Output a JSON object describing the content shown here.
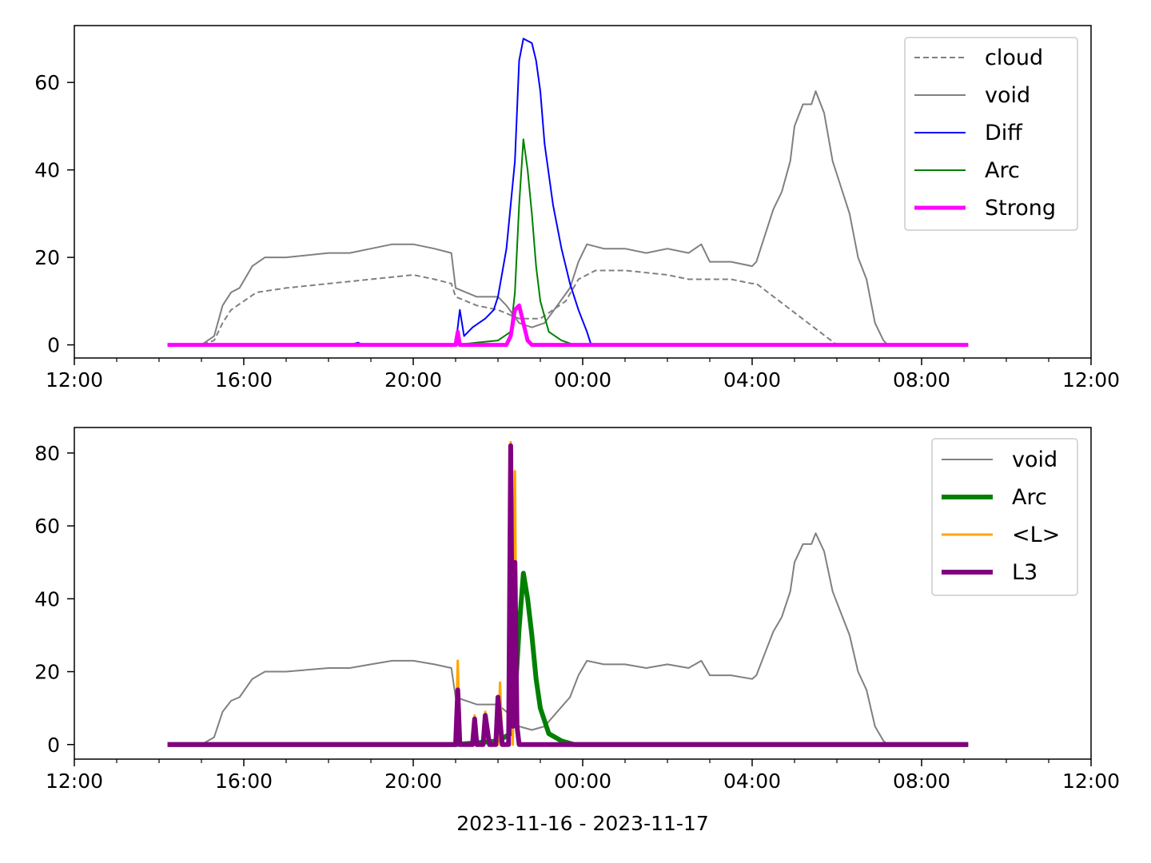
{
  "colors": {
    "cloud": "#808080",
    "void": "#808080",
    "Diff": "#0000ff",
    "Arc": "#008000",
    "Strong": "#ff00ff",
    "L": "#ffa500",
    "L3": "#800080"
  },
  "chart_data": [
    {
      "type": "line",
      "xlabel": "",
      "ylabel": "",
      "x_unit": "hours since 2023-11-16 00:00",
      "xlim": [
        12,
        36
      ],
      "ylim": [
        -3,
        73
      ],
      "x_ticks": [
        12,
        16,
        20,
        24,
        28,
        32,
        36
      ],
      "x_tick_labels": [
        "12:00",
        "16:00",
        "20:00",
        "00:00",
        "04:00",
        "08:00",
        "12:00"
      ],
      "y_ticks": [
        0,
        20,
        40,
        60
      ],
      "y_tick_labels": [
        "0",
        "20",
        "40",
        "60"
      ],
      "legend_position": "top-right",
      "grid": false,
      "series": [
        {
          "name": "cloud",
          "style": "dashed",
          "color": "#808080",
          "width": 1,
          "points": [
            [
              14.2,
              0
            ],
            [
              15.0,
              0
            ],
            [
              15.3,
              1
            ],
            [
              15.5,
              5
            ],
            [
              15.7,
              8
            ],
            [
              16.0,
              10
            ],
            [
              16.3,
              12
            ],
            [
              17.0,
              13
            ],
            [
              18.0,
              14
            ],
            [
              19.0,
              15
            ],
            [
              20.0,
              16
            ],
            [
              20.5,
              15
            ],
            [
              20.9,
              14
            ],
            [
              21.0,
              11
            ],
            [
              21.5,
              9
            ],
            [
              22.0,
              8
            ],
            [
              22.5,
              6
            ],
            [
              23.0,
              6
            ],
            [
              23.3,
              8
            ],
            [
              23.6,
              10
            ],
            [
              23.9,
              15
            ],
            [
              24.3,
              17
            ],
            [
              25.0,
              17
            ],
            [
              26.0,
              16
            ],
            [
              26.5,
              15
            ],
            [
              27.0,
              15
            ],
            [
              27.5,
              15
            ],
            [
              28.0,
              14
            ],
            [
              28.1,
              14
            ],
            [
              30.0,
              0
            ],
            [
              31.2,
              0
            ]
          ]
        },
        {
          "name": "void",
          "style": "solid",
          "color": "#808080",
          "width": 1,
          "points": [
            [
              14.2,
              0
            ],
            [
              15.0,
              0
            ],
            [
              15.3,
              2
            ],
            [
              15.5,
              9
            ],
            [
              15.7,
              12
            ],
            [
              15.9,
              13
            ],
            [
              16.2,
              18
            ],
            [
              16.5,
              20
            ],
            [
              17.0,
              20
            ],
            [
              18.0,
              21
            ],
            [
              18.5,
              21
            ],
            [
              19.0,
              22
            ],
            [
              19.5,
              23
            ],
            [
              20.0,
              23
            ],
            [
              20.5,
              22
            ],
            [
              20.9,
              21
            ],
            [
              21.0,
              13
            ],
            [
              21.5,
              11
            ],
            [
              22.0,
              11
            ],
            [
              22.2,
              9
            ],
            [
              22.5,
              5
            ],
            [
              22.8,
              4
            ],
            [
              23.1,
              5
            ],
            [
              23.4,
              9
            ],
            [
              23.7,
              13
            ],
            [
              23.9,
              19
            ],
            [
              24.1,
              23
            ],
            [
              24.5,
              22
            ],
            [
              25.0,
              22
            ],
            [
              25.5,
              21
            ],
            [
              26.0,
              22
            ],
            [
              26.5,
              21
            ],
            [
              26.8,
              23
            ],
            [
              27.0,
              19
            ],
            [
              27.5,
              19
            ],
            [
              28.0,
              18
            ],
            [
              28.1,
              19
            ],
            [
              28.3,
              25
            ],
            [
              28.5,
              31
            ],
            [
              28.7,
              35
            ],
            [
              28.9,
              42
            ],
            [
              29.0,
              50
            ],
            [
              29.2,
              55
            ],
            [
              29.4,
              55
            ],
            [
              29.5,
              58
            ],
            [
              29.7,
              53
            ],
            [
              29.9,
              42
            ],
            [
              30.1,
              36
            ],
            [
              30.3,
              30
            ],
            [
              30.5,
              20
            ],
            [
              30.7,
              15
            ],
            [
              30.9,
              5
            ],
            [
              31.1,
              1
            ],
            [
              31.2,
              0
            ],
            [
              33.1,
              0
            ]
          ]
        },
        {
          "name": "Diff",
          "style": "solid",
          "color": "#0000ff",
          "width": 1,
          "points": [
            [
              14.2,
              0
            ],
            [
              18.5,
              0
            ],
            [
              18.7,
              0.5
            ],
            [
              18.8,
              0
            ],
            [
              21.0,
              0
            ],
            [
              21.1,
              8
            ],
            [
              21.2,
              2
            ],
            [
              21.4,
              4
            ],
            [
              21.7,
              6
            ],
            [
              21.9,
              8
            ],
            [
              22.0,
              11
            ],
            [
              22.2,
              22
            ],
            [
              22.4,
              42
            ],
            [
              22.5,
              65
            ],
            [
              22.6,
              70
            ],
            [
              22.8,
              69
            ],
            [
              22.9,
              65
            ],
            [
              23.0,
              58
            ],
            [
              23.1,
              46
            ],
            [
              23.3,
              32
            ],
            [
              23.5,
              22
            ],
            [
              23.7,
              14
            ],
            [
              23.9,
              8
            ],
            [
              24.1,
              3
            ],
            [
              24.2,
              0
            ],
            [
              33.1,
              0
            ]
          ]
        },
        {
          "name": "Arc",
          "style": "solid",
          "color": "#008000",
          "width": 1,
          "points": [
            [
              14.2,
              0
            ],
            [
              21.0,
              0
            ],
            [
              21.5,
              0.5
            ],
            [
              22.0,
              1
            ],
            [
              22.3,
              3
            ],
            [
              22.4,
              12
            ],
            [
              22.5,
              32
            ],
            [
              22.6,
              47
            ],
            [
              22.7,
              40
            ],
            [
              22.8,
              30
            ],
            [
              22.9,
              18
            ],
            [
              23.0,
              10
            ],
            [
              23.2,
              3
            ],
            [
              23.5,
              1
            ],
            [
              23.8,
              0
            ],
            [
              33.1,
              0
            ]
          ]
        },
        {
          "name": "Strong",
          "style": "solid",
          "color": "#ff00ff",
          "width": 2.5,
          "points": [
            [
              14.2,
              0
            ],
            [
              21.0,
              0
            ],
            [
              21.05,
              3
            ],
            [
              21.1,
              0
            ],
            [
              22.2,
              0
            ],
            [
              22.3,
              2
            ],
            [
              22.4,
              8
            ],
            [
              22.5,
              9
            ],
            [
              22.6,
              5
            ],
            [
              22.7,
              1
            ],
            [
              22.8,
              0
            ],
            [
              33.1,
              0
            ]
          ]
        }
      ]
    },
    {
      "type": "line",
      "xlabel": "2023-11-16 - 2023-11-17",
      "ylabel": "",
      "x_unit": "hours since 2023-11-16 00:00",
      "xlim": [
        12,
        36
      ],
      "ylim": [
        -4,
        87
      ],
      "x_ticks": [
        12,
        16,
        20,
        24,
        28,
        32,
        36
      ],
      "x_tick_labels": [
        "12:00",
        "16:00",
        "20:00",
        "00:00",
        "04:00",
        "08:00",
        "12:00"
      ],
      "y_ticks": [
        0,
        20,
        40,
        60,
        80
      ],
      "y_tick_labels": [
        "0",
        "20",
        "40",
        "60",
        "80"
      ],
      "legend_position": "top-right",
      "grid": false,
      "series": [
        {
          "name": "void",
          "style": "solid",
          "color": "#808080",
          "width": 1,
          "points": [
            [
              14.2,
              0
            ],
            [
              15.0,
              0
            ],
            [
              15.3,
              2
            ],
            [
              15.5,
              9
            ],
            [
              15.7,
              12
            ],
            [
              15.9,
              13
            ],
            [
              16.2,
              18
            ],
            [
              16.5,
              20
            ],
            [
              17.0,
              20
            ],
            [
              18.0,
              21
            ],
            [
              18.5,
              21
            ],
            [
              19.0,
              22
            ],
            [
              19.5,
              23
            ],
            [
              20.0,
              23
            ],
            [
              20.5,
              22
            ],
            [
              20.9,
              21
            ],
            [
              21.0,
              13
            ],
            [
              21.5,
              11
            ],
            [
              22.0,
              11
            ],
            [
              22.2,
              9
            ],
            [
              22.5,
              5
            ],
            [
              22.8,
              4
            ],
            [
              23.1,
              5
            ],
            [
              23.4,
              9
            ],
            [
              23.7,
              13
            ],
            [
              23.9,
              19
            ],
            [
              24.1,
              23
            ],
            [
              24.5,
              22
            ],
            [
              25.0,
              22
            ],
            [
              25.5,
              21
            ],
            [
              26.0,
              22
            ],
            [
              26.5,
              21
            ],
            [
              26.8,
              23
            ],
            [
              27.0,
              19
            ],
            [
              27.5,
              19
            ],
            [
              28.0,
              18
            ],
            [
              28.1,
              19
            ],
            [
              28.3,
              25
            ],
            [
              28.5,
              31
            ],
            [
              28.7,
              35
            ],
            [
              28.9,
              42
            ],
            [
              29.0,
              50
            ],
            [
              29.2,
              55
            ],
            [
              29.4,
              55
            ],
            [
              29.5,
              58
            ],
            [
              29.7,
              53
            ],
            [
              29.9,
              42
            ],
            [
              30.1,
              36
            ],
            [
              30.3,
              30
            ],
            [
              30.5,
              20
            ],
            [
              30.7,
              15
            ],
            [
              30.9,
              5
            ],
            [
              31.1,
              1
            ],
            [
              31.2,
              0
            ],
            [
              33.1,
              0
            ]
          ]
        },
        {
          "name": "Arc",
          "style": "solid",
          "color": "#008000",
          "width": 3,
          "points": [
            [
              14.2,
              0
            ],
            [
              21.0,
              0
            ],
            [
              21.5,
              0.5
            ],
            [
              22.0,
              1
            ],
            [
              22.3,
              3
            ],
            [
              22.4,
              12
            ],
            [
              22.5,
              32
            ],
            [
              22.6,
              47
            ],
            [
              22.7,
              40
            ],
            [
              22.8,
              30
            ],
            [
              22.9,
              18
            ],
            [
              23.0,
              10
            ],
            [
              23.2,
              3
            ],
            [
              23.5,
              1
            ],
            [
              23.8,
              0
            ],
            [
              33.1,
              0
            ]
          ]
        },
        {
          "name": "<L>",
          "style": "solid",
          "color": "#ffa500",
          "width": 1.5,
          "points": [
            [
              14.2,
              0
            ],
            [
              21.0,
              0
            ],
            [
              21.05,
              23
            ],
            [
              21.1,
              0
            ],
            [
              21.4,
              0
            ],
            [
              21.45,
              8
            ],
            [
              21.5,
              0
            ],
            [
              21.65,
              0
            ],
            [
              21.7,
              9
            ],
            [
              21.8,
              0
            ],
            [
              22.0,
              0
            ],
            [
              22.05,
              17
            ],
            [
              22.1,
              0
            ],
            [
              22.25,
              0
            ],
            [
              22.3,
              83
            ],
            [
              22.35,
              0
            ],
            [
              22.4,
              75
            ],
            [
              22.45,
              5
            ],
            [
              22.5,
              0
            ],
            [
              33.1,
              0
            ]
          ]
        },
        {
          "name": "L3",
          "style": "solid",
          "color": "#800080",
          "width": 3,
          "points": [
            [
              14.2,
              0
            ],
            [
              21.0,
              0
            ],
            [
              21.05,
              15
            ],
            [
              21.1,
              0
            ],
            [
              21.4,
              0
            ],
            [
              21.45,
              7
            ],
            [
              21.5,
              0
            ],
            [
              21.65,
              0
            ],
            [
              21.7,
              8
            ],
            [
              21.8,
              0
            ],
            [
              21.95,
              0
            ],
            [
              22.0,
              13
            ],
            [
              22.1,
              0
            ],
            [
              22.25,
              0
            ],
            [
              22.3,
              82
            ],
            [
              22.35,
              5
            ],
            [
              22.4,
              50
            ],
            [
              22.45,
              5
            ],
            [
              22.5,
              0
            ],
            [
              33.1,
              0
            ]
          ]
        }
      ]
    }
  ]
}
